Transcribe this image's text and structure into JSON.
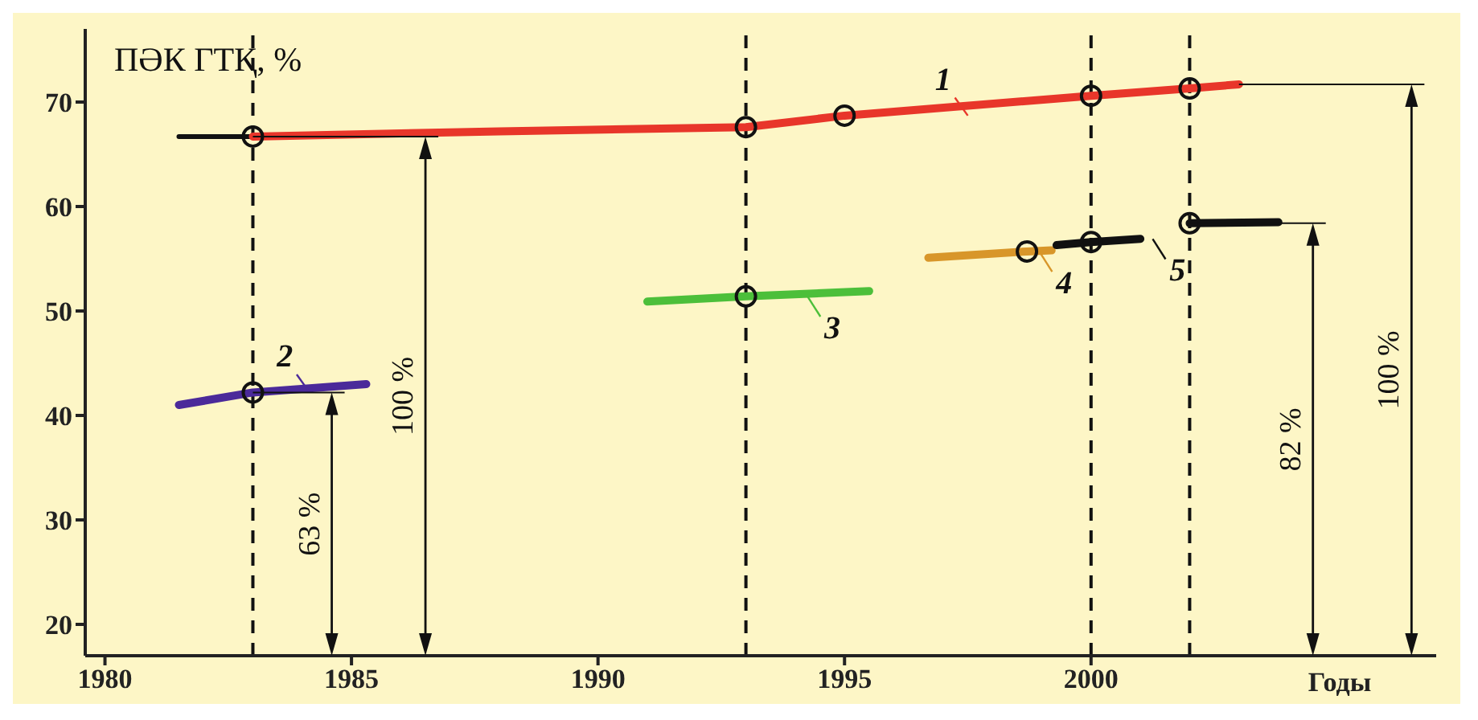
{
  "chart_data": {
    "type": "line",
    "ylabel": "ПӘК ГТҚ, %",
    "xlabel": "Годы",
    "xlim": [
      1979.6,
      2007
    ],
    "xticks": [
      1980,
      1985,
      1990,
      1995,
      2000
    ],
    "ylim": [
      17,
      77
    ],
    "yticks": [
      20,
      30,
      40,
      50,
      60,
      70
    ],
    "grid": false,
    "legend": "center",
    "series": [
      {
        "color": "#111111",
        "x": [
          1981.5,
          1983
        ],
        "values": [
          66.7,
          66.7
        ]
      },
      {
        "name": "1",
        "color": "#e8362a",
        "x": [
          1983,
          1988,
          1993,
          1995,
          2000,
          2002,
          2003
        ],
        "values": [
          66.7,
          67.2,
          67.6,
          68.7,
          70.6,
          71.3,
          71.7
        ]
      },
      {
        "name": "2",
        "color": "#4b2a9a",
        "x": [
          1981.5,
          1983,
          1985.3
        ],
        "values": [
          41.0,
          42.2,
          43.0
        ]
      },
      {
        "name": "3",
        "color": "#4cbf3a",
        "x": [
          1991,
          1993,
          1995.5
        ],
        "values": [
          50.9,
          51.4,
          51.9
        ]
      },
      {
        "name": "4",
        "color": "#d8962a",
        "x": [
          1996.7,
          1998.7,
          1999.2
        ],
        "values": [
          55.1,
          55.7,
          55.8
        ]
      },
      {
        "name": "5",
        "color": "#111111",
        "x": [
          1999.3,
          2000,
          2001,
          2001.5,
          2002,
          2003.8
        ],
        "values": [
          56.3,
          56.6,
          56.9,
          null,
          58.4,
          58.5
        ]
      },
      {
        "type": "scatter",
        "color": "#111111",
        "marker": "circle",
        "x": [
          1983,
          1983,
          1993,
          1993,
          1995,
          1998.7,
          2000,
          2000,
          2002,
          2002
        ],
        "values": [
          66.7,
          42.2,
          67.6,
          51.4,
          68.7,
          55.7,
          70.6,
          56.6,
          71.3,
          58.4
        ]
      }
    ],
    "ref_lines": [
      {
        "axis": "x",
        "value": 1983,
        "line_style": "dashed",
        "color": "#111111"
      },
      {
        "axis": "x",
        "value": 1993,
        "line_style": "dashed",
        "color": "#111111"
      },
      {
        "axis": "x",
        "value": 2000,
        "line_style": "dashed",
        "color": "#111111"
      },
      {
        "axis": "x",
        "value": 2002,
        "line_style": "dashed",
        "color": "#111111"
      }
    ],
    "annotations": [
      "63 %",
      "100 %",
      "82 %",
      "100 %"
    ]
  }
}
